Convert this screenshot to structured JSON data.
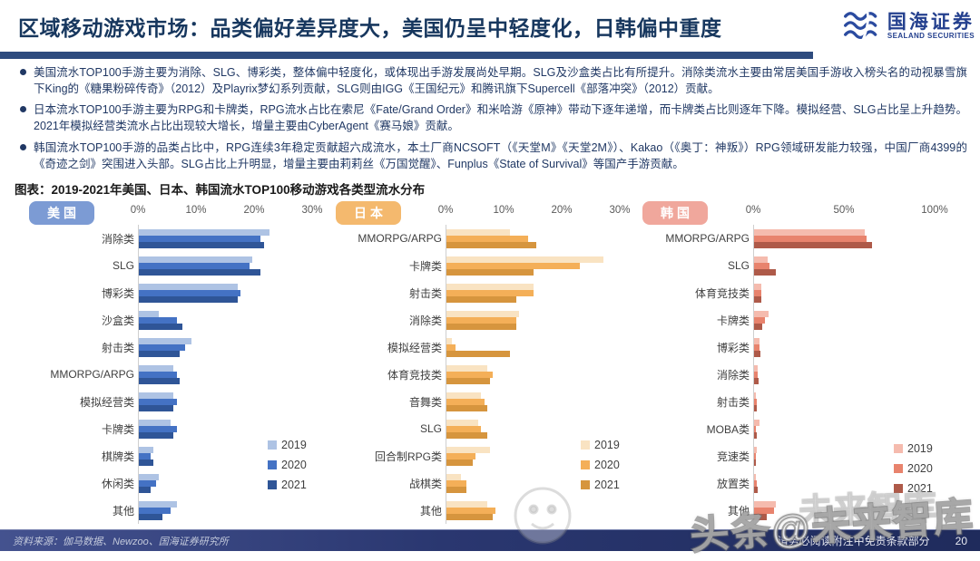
{
  "header": {
    "title": "区域移动游戏市场：品类偏好差异度大，美国仍呈中轻度化，日韩偏中重度",
    "logo_cn": "国海证券",
    "logo_en": "SEALAND SECURITIES"
  },
  "bullets": [
    "美国流水TOP100手游主要为消除、SLG、博彩类，整体偏中轻度化，或体现出手游发展尚处早期。SLG及沙盒类占比有所提升。消除类流水主要由常居美国手游收入榜头名的动视暴雪旗下King的《糖果粉碎传奇》（2012）及Playrix梦幻系列贡献，SLG则由IGG《王国纪元》和腾讯旗下Supercell《部落冲突》（2012）贡献。",
    "日本流水TOP100手游主要为RPG和卡牌类，RPG流水占比在索尼《Fate/Grand Order》和米哈游《原神》带动下逐年递增，而卡牌类占比则逐年下降。模拟经营、SLG占比呈上升趋势。2021年模拟经营类流水占比出现较大增长，增量主要由CyberAgent《赛马娘》贡献。",
    "韩国流水TOP100手游的品类占比中，RPG连续3年稳定贡献超六成流水，本土厂商NCSOFT（《天堂M》《天堂2M》）、Kakao（《奥丁：神叛》）RPG领域研发能力较强，中国厂商4399的《奇迹之剑》突围进入头部。SLG占比上升明显，增量主要由莉莉丝《万国觉醒》、Funplus《State of Survival》等国产手游贡献。"
  ],
  "figure_title": "图表：2019-2021年美国、日本、韩国流水TOP100移动游戏各类型流水分布",
  "chart_data": [
    {
      "type": "bar",
      "orientation": "horizontal",
      "region_label": "美国",
      "pill_color": "#7C9BD4",
      "tick_labels": [
        "0%",
        "10%",
        "20%",
        "30%"
      ],
      "tick_values": [
        0,
        10,
        20,
        30
      ],
      "xlim": [
        0,
        30
      ],
      "unit": "%",
      "legend_position": "right-lower",
      "categories": [
        "消除类",
        "SLG",
        "博彩类",
        "沙盒类",
        "射击类",
        "MMORPG/ARPG",
        "模拟经营类",
        "卡牌类",
        "棋牌类",
        "休闲类",
        "其他"
      ],
      "series": [
        {
          "name": "2019",
          "color": "#AEC3E4",
          "values": [
            22.5,
            19.5,
            17,
            3.5,
            9,
            6,
            6,
            5.5,
            2.5,
            3.5,
            6.5
          ]
        },
        {
          "name": "2020",
          "color": "#4472C4",
          "values": [
            21,
            19,
            17.5,
            6.5,
            8,
            6.5,
            6.5,
            6.5,
            2,
            3,
            5.5
          ]
        },
        {
          "name": "2021",
          "color": "#2F5597",
          "values": [
            21.5,
            21,
            17,
            7.5,
            7,
            7,
            6,
            6,
            2.5,
            2,
            4
          ]
        }
      ]
    },
    {
      "type": "bar",
      "orientation": "horizontal",
      "region_label": "日本",
      "pill_color": "#F4B96E",
      "tick_labels": [
        "0%",
        "10%",
        "20%",
        "30%"
      ],
      "tick_values": [
        0,
        10,
        20,
        30
      ],
      "xlim": [
        0,
        30
      ],
      "unit": "%",
      "legend_position": "right-lower",
      "categories": [
        "MMORPG/ARPG",
        "卡牌类",
        "射击类",
        "消除类",
        "模拟经营类",
        "体育竞技类",
        "音舞类",
        "SLG",
        "回合制RPG类",
        "战棋类",
        "其他"
      ],
      "series": [
        {
          "name": "2019",
          "color": "#F9E3C2",
          "values": [
            11,
            27,
            15,
            12.5,
            1,
            7,
            6,
            5.5,
            7.5,
            2.5,
            7
          ]
        },
        {
          "name": "2020",
          "color": "#F4AF58",
          "values": [
            14,
            23,
            15,
            12,
            1.5,
            8,
            6.5,
            6,
            5,
            3.5,
            8.5
          ]
        },
        {
          "name": "2021",
          "color": "#D6953E",
          "values": [
            15.5,
            15,
            12,
            12,
            11,
            7.5,
            7,
            7,
            4.5,
            3.5,
            8
          ]
        }
      ]
    },
    {
      "type": "bar",
      "orientation": "horizontal",
      "region_label": "韩国",
      "pill_color": "#F0A79C",
      "tick_labels": [
        "0%",
        "50%",
        "100%"
      ],
      "tick_values": [
        0,
        50,
        100
      ],
      "xlim": [
        0,
        100
      ],
      "unit": "%",
      "legend_position": "right-lower",
      "categories": [
        "MMORPG/ARPG",
        "SLG",
        "体育竞技类",
        "卡牌类",
        "博彩类",
        "消除类",
        "射击类",
        "MOBA类",
        "竞速类",
        "放置类",
        "其他"
      ],
      "series": [
        {
          "name": "2019",
          "color": "#F5BBAE",
          "values": [
            61,
            7.5,
            4,
            8,
            3,
            2,
            1,
            3,
            1.5,
            1,
            12
          ]
        },
        {
          "name": "2020",
          "color": "#E8836D",
          "values": [
            62,
            8.5,
            4,
            6,
            3,
            2,
            1.5,
            1,
            1,
            1.5,
            11
          ]
        },
        {
          "name": "2021",
          "color": "#AE5A49",
          "values": [
            65,
            12,
            4,
            4.5,
            3.5,
            2.5,
            1.5,
            1.5,
            1,
            2,
            7
          ]
        }
      ]
    }
  ],
  "footer": {
    "source": "资料来源：伽马数据、Newzoo、国海证券研究所",
    "disclaimer": "请务必阅读附注中免责条款部分",
    "page": "20"
  },
  "watermark": {
    "main": "头条@未来智库",
    "ghost": "未来智库"
  }
}
